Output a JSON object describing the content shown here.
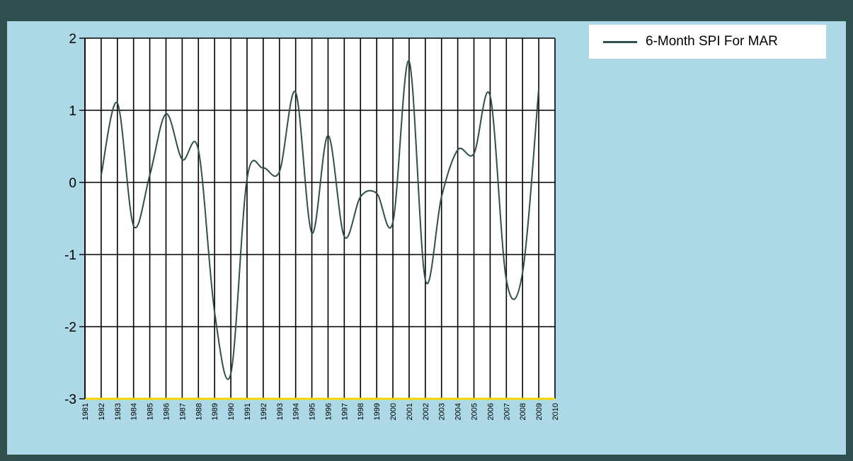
{
  "colors": {
    "window_border": "#2f4f4f",
    "panel_background": "#add8e6",
    "plot_background": "#ffffff",
    "series_line": "#2f4f4f",
    "baseline": "#ffd700"
  },
  "legend": {
    "label": "6-Month SPI For MAR"
  },
  "chart_data": {
    "type": "line",
    "title": "",
    "xlabel": "",
    "ylabel": "",
    "ylim": [
      -3,
      2
    ],
    "y_ticks": [
      "2",
      "1",
      "0",
      "-1",
      "-2",
      "-3"
    ],
    "x_ticks": [
      "1981",
      "1982",
      "1983",
      "1984",
      "1985",
      "1986",
      "1987",
      "1988",
      "1989",
      "1990",
      "1991",
      "1992",
      "1993",
      "1994",
      "1995",
      "1996",
      "1997",
      "1998",
      "1999",
      "2000",
      "2001",
      "2002",
      "2003",
      "2004",
      "2005",
      "2006",
      "2007",
      "2008",
      "2009",
      "2010"
    ],
    "grid": true,
    "legend_position": "top-right",
    "series": [
      {
        "name": "6-Month SPI For MAR",
        "x": [
          1982,
          1983,
          1984,
          1985,
          1986,
          1987,
          1988,
          1989,
          1990,
          1991,
          1992,
          1993,
          1994,
          1995,
          1996,
          1997,
          1998,
          1999,
          2000,
          2001,
          2002,
          2003,
          2004,
          2005,
          2006,
          2007,
          2008,
          2009
        ],
        "values": [
          0.1,
          1.1,
          -0.6,
          0.1,
          0.95,
          0.32,
          0.45,
          -1.8,
          -2.65,
          0.05,
          0.2,
          0.15,
          1.25,
          -0.7,
          0.65,
          -0.75,
          -0.2,
          -0.15,
          -0.55,
          1.68,
          -1.35,
          -0.2,
          0.45,
          0.4,
          1.2,
          -1.35,
          -1.25,
          1.3
        ]
      }
    ]
  }
}
